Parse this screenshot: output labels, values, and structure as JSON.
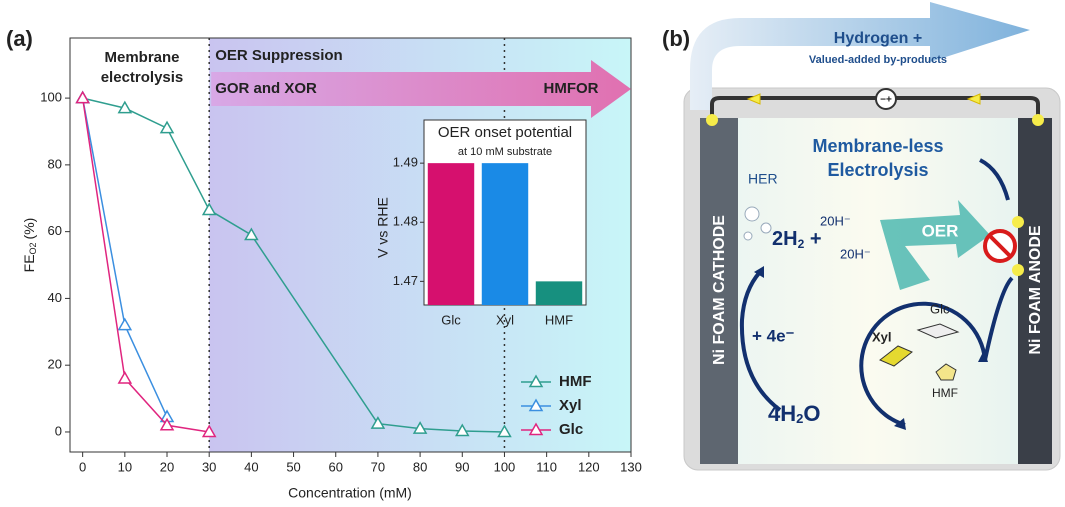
{
  "panel_labels": [
    "(a)",
    "(b)"
  ],
  "chart_data": [
    {
      "type": "line",
      "xlabel": "Concentration (mM)",
      "ylabel": {
        "main": "FE",
        "sub": "O2",
        "unit": "(%)"
      },
      "xlim": [
        -3,
        130
      ],
      "ylim": [
        -6,
        118
      ],
      "xticks": [
        0,
        10,
        20,
        30,
        40,
        50,
        60,
        70,
        80,
        90,
        100,
        110,
        120,
        130
      ],
      "yticks": [
        0,
        20,
        40,
        60,
        80,
        100
      ],
      "vlines": [
        30,
        100
      ],
      "annotations": [
        "Membrane",
        "electrolysis",
        "OER Suppression",
        "GOR and XOR",
        "HMFOR"
      ],
      "legend": "lower right",
      "series": [
        {
          "name": "HMF",
          "color": "#2f9e8f",
          "x": [
            0,
            10,
            20,
            30,
            40,
            70,
            80,
            90,
            100
          ],
          "values": [
            100,
            97,
            91,
            66.5,
            59,
            2.5,
            1,
            0.3,
            0
          ]
        },
        {
          "name": "Xyl",
          "color": "#3b8fe0",
          "x": [
            0,
            10,
            20
          ],
          "values": [
            100,
            32,
            4.5
          ]
        },
        {
          "name": "Glc",
          "color": "#e0257f",
          "x": [
            0,
            10,
            20,
            30
          ],
          "values": [
            100,
            16,
            2,
            0
          ]
        }
      ]
    },
    {
      "type": "bar",
      "title": "OER onset potential",
      "subtitle": "at 10 mM substrate",
      "ylabel": "V vs RHE",
      "categories": [
        "Glc",
        "Xyl",
        "HMF"
      ],
      "values": [
        1.49,
        1.49,
        1.47
      ],
      "colors": [
        "#d6106e",
        "#1a8ae6",
        "#17907f"
      ],
      "ylim": [
        1.466,
        1.4973
      ],
      "yticks": [
        1.47,
        1.48,
        1.49
      ]
    }
  ],
  "diagram": {
    "arrow_title": "Hydrogen +",
    "arrow_subtitle": "Valued-added by-products",
    "center_title": [
      "Membrane-less",
      "Electrolysis"
    ],
    "cathode": "Ni FOAM CATHODE",
    "anode": "Ni FOAM ANODE",
    "circuit": "−+",
    "her": "HER",
    "h2": {
      "pre": "2H",
      "sub": "2",
      "post": " +"
    },
    "oh": [
      "20H⁻",
      "20H⁻"
    ],
    "oer": "OER",
    "electrons": "+ 4e⁻",
    "water": {
      "pre": "4H",
      "sub": "2",
      "post": "O"
    },
    "substrates": [
      "Glc",
      "Xyl",
      "HMF"
    ]
  }
}
